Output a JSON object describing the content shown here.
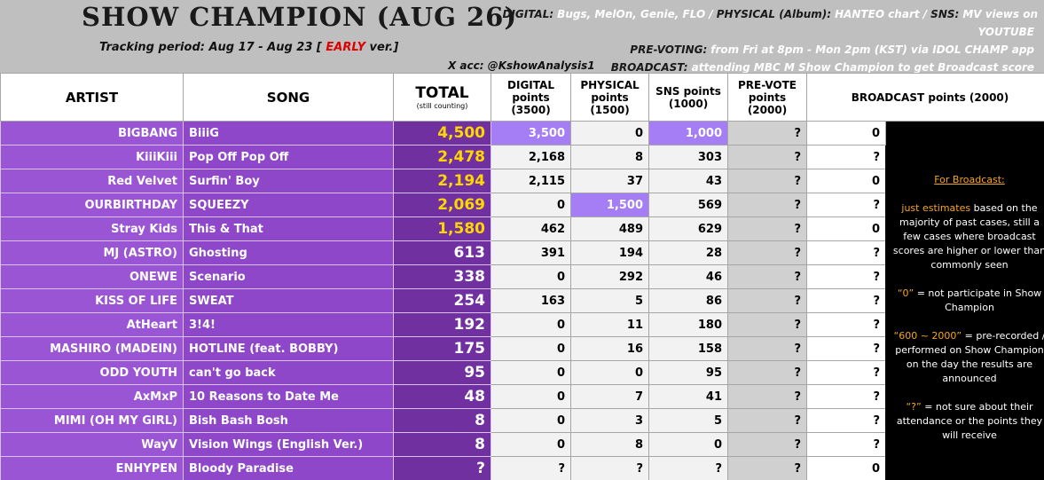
{
  "header": {
    "title": "SHOW CHAMPION (AUG 26)",
    "tracking": {
      "prefix": "Tracking period: Aug 17 - Aug 23 [",
      "flag": "EARLY",
      "suffix": "ver.]"
    },
    "info": [
      [
        {
          "label": "DIGITAL:",
          "text": "Bugs, MelOn, Genie, FLO /"
        },
        {
          "label": "PHYSICAL (Album):",
          "text": "HANTEO chart /"
        },
        {
          "label": "SNS:",
          "text": "MV views on YOUTUBE"
        }
      ],
      [
        {
          "label": "PRE-VOTING:",
          "text": "from Fri at 8pm - Mon 2pm (KST) via IDOL CHAMP app"
        }
      ],
      [
        {
          "label": "BROADCAST:",
          "text": "attending MBC M Show Champion to get Broadcast score"
        }
      ]
    ],
    "account": "X acc: @KshowAnalysis1"
  },
  "table": {
    "columns": {
      "artist": "ARTIST",
      "song": "SONG",
      "total": {
        "label": "TOTAL",
        "note": "(still counting)"
      },
      "digital": [
        "DIGITAL",
        "points",
        "(3500)"
      ],
      "physical": [
        "PHYSICAL",
        "points",
        "(1500)"
      ],
      "sns": [
        "SNS points",
        "(1000)"
      ],
      "prevote": [
        "PRE-VOTE",
        "points",
        "(2000)"
      ],
      "broadcast": "BROADCAST points (2000)"
    },
    "rows": [
      [
        "BIGBANG",
        "BiiiG",
        "4,500",
        "3,500",
        "0",
        "1,000",
        "?",
        "0"
      ],
      [
        "KiiiKiii",
        "Pop Off Pop Off",
        "2,478",
        "2,168",
        "8",
        "303",
        "?",
        "?"
      ],
      [
        "Red Velvet",
        "Surfin' Boy",
        "2,194",
        "2,115",
        "37",
        "43",
        "?",
        "0"
      ],
      [
        "OURBIRTHDAY",
        "SQUEEZY",
        "2,069",
        "0",
        "1,500",
        "569",
        "?",
        "?"
      ],
      [
        "Stray Kids",
        "This & That",
        "1,580",
        "462",
        "489",
        "629",
        "?",
        "0"
      ],
      [
        "MJ (ASTRO)",
        "Ghosting",
        "613",
        "391",
        "194",
        "28",
        "?",
        "?"
      ],
      [
        "ONEWE",
        "Scenario",
        "338",
        "0",
        "292",
        "46",
        "?",
        "?"
      ],
      [
        "KISS OF LIFE",
        "SWEAT",
        "254",
        "163",
        "5",
        "86",
        "?",
        "?"
      ],
      [
        "AtHeart",
        "3!4!",
        "192",
        "0",
        "11",
        "180",
        "?",
        "?"
      ],
      [
        "MASHIRO (MADEIN)",
        "HOTLINE (feat. BOBBY)",
        "175",
        "0",
        "16",
        "158",
        "?",
        "?"
      ],
      [
        "ODD YOUTH",
        "can't go back",
        "95",
        "0",
        "0",
        "95",
        "?",
        "?"
      ],
      [
        "AxMxP",
        "10 Reasons to Date Me",
        "48",
        "0",
        "7",
        "41",
        "?",
        "?"
      ],
      [
        "MIMI (OH MY GIRL)",
        "Bish Bash Bosh",
        "8",
        "0",
        "3",
        "5",
        "?",
        "?"
      ],
      [
        "WayV",
        "Vision Wings (English Ver.)",
        "8",
        "0",
        "8",
        "0",
        "?",
        "?"
      ],
      [
        "ENHYPEN",
        "Bloody Paradise",
        "?",
        "?",
        "?",
        "?",
        "?",
        "0"
      ]
    ]
  },
  "notes": {
    "heading": "For Broadcast:",
    "estimate": {
      "lead": "just estimates",
      "text": "based on the majority of past cases, still a few cases where broadcast scores are higher or lower than commonly seen"
    },
    "keys": [
      {
        "key": "“0”",
        "text": "= not participate in Show Champion"
      },
      {
        "key": "“600 ~ 2000”",
        "text": "= pre-recorded / performed on Show Champion on the day the results are announced"
      },
      {
        "key": "“?”",
        "text": "= not sure about their attendance or the points they will receive"
      }
    ]
  }
}
